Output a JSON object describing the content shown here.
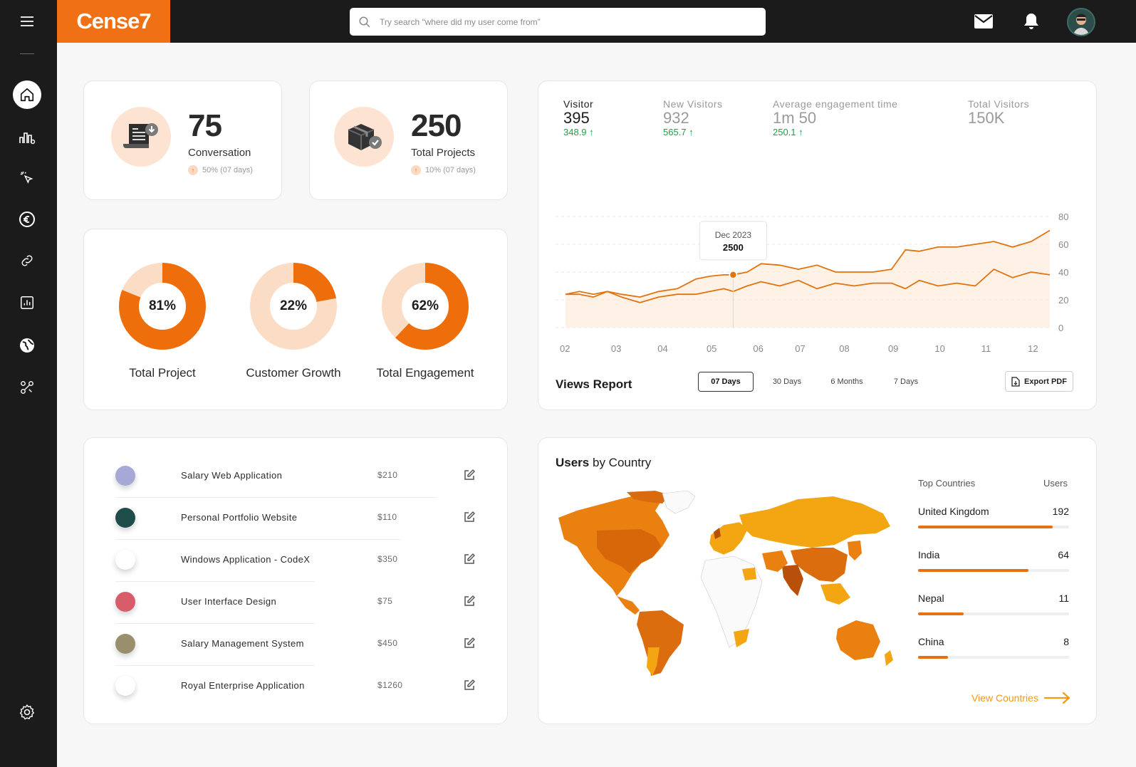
{
  "brand": {
    "logo_text": "Cense7",
    "accent": "#f07115"
  },
  "search": {
    "placeholder": "Try search “where did my user come from”",
    "value": ""
  },
  "sidebar": {
    "items": [
      {
        "icon": "menu-icon"
      },
      {
        "icon": "home-icon"
      },
      {
        "icon": "analytics-icon"
      },
      {
        "icon": "cursor-click-icon"
      },
      {
        "icon": "euro-icon"
      },
      {
        "icon": "link-icon"
      },
      {
        "icon": "report-icon"
      },
      {
        "icon": "globe-icon"
      },
      {
        "icon": "integration-icon"
      },
      {
        "icon": "settings-icon"
      }
    ]
  },
  "stats": [
    {
      "value": "75",
      "label": "Conversation",
      "sub": "50% (07 days)",
      "icon": "invoice-icon"
    },
    {
      "value": "250",
      "label": "Total Projects",
      "sub": "10% (07 days)",
      "icon": "package-icon"
    }
  ],
  "donuts": [
    {
      "pct": "81%",
      "fraction": 0.81,
      "label": "Total Project"
    },
    {
      "pct": "22%",
      "fraction": 0.22,
      "label": "Customer Growth"
    },
    {
      "pct": "62%",
      "fraction": 0.62,
      "label": "Total Engagement"
    }
  ],
  "metrics": [
    {
      "title": "Visitor",
      "value": "395",
      "delta": "348.9 ↑"
    },
    {
      "title": "New Visitors",
      "value": "932",
      "delta": "565.7 ↑"
    },
    {
      "title": "Average engagement time",
      "value": "1m 50",
      "delta": "250.1 ↑"
    },
    {
      "title": "Total Visitors",
      "value": "150K",
      "delta": ""
    }
  ],
  "views": {
    "title": "Views Report",
    "ranges": [
      "07 Days",
      "30 Days",
      "6 Months",
      "7 Days"
    ],
    "active_range": "07 Days",
    "export_label": "Export PDF"
  },
  "chart_data": {
    "type": "line",
    "x_ticks": [
      "02",
      "03",
      "04",
      "05",
      "06",
      "07",
      "08",
      "09",
      "10",
      "11",
      "12"
    ],
    "y_ticks": [
      "80",
      "60",
      "40",
      "20",
      "0"
    ],
    "ylim": [
      0,
      80
    ],
    "tooltip": {
      "label": "Dec 2023",
      "value": "2500"
    },
    "series": [
      {
        "x": [
          2,
          2.3,
          2.6,
          2.9,
          3.2,
          3.6,
          4.0,
          4.4,
          4.8,
          5.1,
          5.4,
          5.6,
          5.9,
          6.2,
          6.6,
          7.0,
          7.4,
          7.8,
          8.2,
          8.6,
          9.0,
          9.3,
          9.6,
          10.0,
          10.4,
          10.8,
          11.2,
          11.6,
          12.0,
          12.4
        ],
        "y": [
          24,
          24,
          22,
          26,
          24,
          22,
          26,
          28,
          35,
          37,
          38,
          38,
          40,
          46,
          45,
          42,
          45,
          40,
          40,
          40,
          42,
          56,
          55,
          58,
          58,
          60,
          62,
          58,
          62,
          70
        ]
      },
      {
        "x": [
          2,
          2.3,
          2.6,
          2.9,
          3.2,
          3.6,
          4.0,
          4.4,
          4.8,
          5.1,
          5.4,
          5.6,
          5.9,
          6.2,
          6.6,
          7.0,
          7.4,
          7.8,
          8.2,
          8.6,
          9.0,
          9.3,
          9.6,
          10.0,
          10.4,
          10.8,
          11.2,
          11.6,
          12.0,
          12.4
        ],
        "y": [
          24,
          26,
          24,
          26,
          22,
          18,
          22,
          24,
          24,
          26,
          28,
          26,
          30,
          33,
          30,
          34,
          28,
          32,
          30,
          32,
          32,
          28,
          34,
          30,
          32,
          30,
          42,
          36,
          40,
          38
        ]
      }
    ]
  },
  "projects": [
    {
      "name": "Salary Web Application",
      "price": "$210",
      "thumb": "#a6a8d6"
    },
    {
      "name": "Personal Portfolio Website",
      "price": "$110",
      "thumb": "#1e4d4a"
    },
    {
      "name": "Windows Application - CodeX",
      "price": "$350",
      "thumb": "#ffffff"
    },
    {
      "name": "User Interface Design",
      "price": "$75",
      "thumb": "#d95c6a"
    },
    {
      "name": "Salary Management System",
      "price": "$450",
      "thumb": "#9a8f6d"
    },
    {
      "name": "Royal Enterprise Application",
      "price": "$1260",
      "thumb": "#ffffff"
    }
  ],
  "countries": {
    "title_bold": "Users",
    "title_rest": " by Country",
    "col_country": "Top Countries",
    "col_users": "Users",
    "rows": [
      {
        "name": "United Kingdom",
        "value": "192",
        "fraction": 0.89
      },
      {
        "name": "India",
        "value": "64",
        "fraction": 0.73
      },
      {
        "name": "Nepal",
        "value": "11",
        "fraction": 0.3
      },
      {
        "name": "China",
        "value": "8",
        "fraction": 0.2
      }
    ],
    "view_label": "View Countries"
  }
}
